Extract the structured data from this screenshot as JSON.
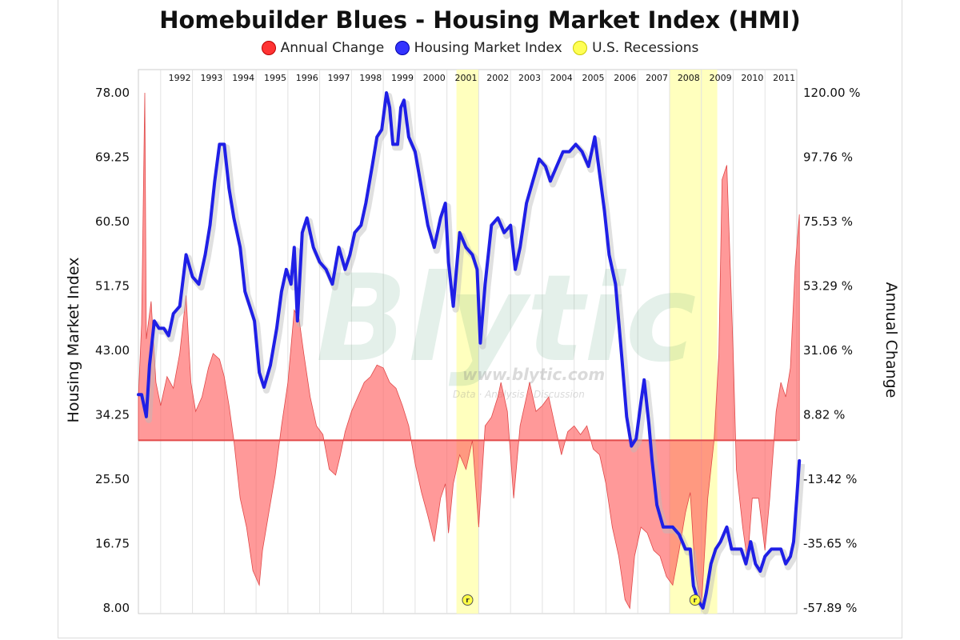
{
  "chart_data": {
    "type": "line",
    "title": "Homebuilder Blues - Housing Market Index (HMI)",
    "legend": [
      {
        "name": "Annual Change",
        "color": "#ff3333"
      },
      {
        "name": "Housing Market Index",
        "color": "#3333ff"
      },
      {
        "name": "U.S. Recessions",
        "color": "#ffff66"
      }
    ],
    "legend_position": "top",
    "ylabel_left": "Housing Market Index",
    "ylabel_right": "Annual Change",
    "y_left_ticks": [
      "78.00",
      "69.25",
      "60.50",
      "51.75",
      "43.00",
      "34.25",
      "25.50",
      "16.75",
      "8.00"
    ],
    "y_right_ticks": [
      "120.00 %",
      "97.76 %",
      "75.53 %",
      "53.29 %",
      "31.06 %",
      "8.82 %",
      "-13.42 %",
      "-35.65 %",
      "-57.89 %"
    ],
    "y_left_range": [
      8,
      78
    ],
    "y_right_range": [
      -57.89,
      120
    ],
    "x_range": [
      1991.2,
      2011.9
    ],
    "years": [
      "1992",
      "1993",
      "1994",
      "1995",
      "1996",
      "1997",
      "1998",
      "1999",
      "2000",
      "2001",
      "2002",
      "2003",
      "2004",
      "2005",
      "2006",
      "2007",
      "2008",
      "2009",
      "2010",
      "2011"
    ],
    "grid": "vertical",
    "recessions": [
      [
        2001.2,
        2001.9
      ],
      [
        2007.9,
        2009.4
      ]
    ],
    "recession_marker": "r",
    "hmi": [
      [
        1991.2,
        37
      ],
      [
        1991.3,
        37
      ],
      [
        1991.45,
        34
      ],
      [
        1991.55,
        41
      ],
      [
        1991.7,
        47
      ],
      [
        1991.85,
        46
      ],
      [
        1992.0,
        46
      ],
      [
        1992.15,
        45
      ],
      [
        1992.3,
        48
      ],
      [
        1992.5,
        49
      ],
      [
        1992.7,
        56
      ],
      [
        1992.9,
        53
      ],
      [
        1993.1,
        52
      ],
      [
        1993.3,
        56
      ],
      [
        1993.45,
        60
      ],
      [
        1993.6,
        66
      ],
      [
        1993.75,
        71
      ],
      [
        1993.9,
        71
      ],
      [
        1994.05,
        65
      ],
      [
        1994.2,
        61
      ],
      [
        1994.4,
        57
      ],
      [
        1994.55,
        51
      ],
      [
        1994.7,
        49
      ],
      [
        1994.85,
        47
      ],
      [
        1995.0,
        40
      ],
      [
        1995.15,
        38
      ],
      [
        1995.35,
        41
      ],
      [
        1995.55,
        46
      ],
      [
        1995.7,
        51
      ],
      [
        1995.85,
        54
      ],
      [
        1996.0,
        52
      ],
      [
        1996.1,
        57
      ],
      [
        1996.2,
        47
      ],
      [
        1996.35,
        59
      ],
      [
        1996.5,
        61
      ],
      [
        1996.7,
        57
      ],
      [
        1996.9,
        55
      ],
      [
        1997.1,
        54
      ],
      [
        1997.3,
        52
      ],
      [
        1997.5,
        57
      ],
      [
        1997.7,
        54
      ],
      [
        1997.85,
        56
      ],
      [
        1998.0,
        59
      ],
      [
        1998.2,
        60
      ],
      [
        1998.35,
        63
      ],
      [
        1998.55,
        68
      ],
      [
        1998.7,
        72
      ],
      [
        1998.85,
        73
      ],
      [
        1999.0,
        78
      ],
      [
        1999.1,
        76
      ],
      [
        1999.2,
        71
      ],
      [
        1999.35,
        71
      ],
      [
        1999.45,
        76
      ],
      [
        1999.55,
        77
      ],
      [
        1999.7,
        72
      ],
      [
        1999.9,
        70
      ],
      [
        2000.1,
        65
      ],
      [
        2000.3,
        60
      ],
      [
        2000.5,
        57
      ],
      [
        2000.7,
        61
      ],
      [
        2000.85,
        63
      ],
      [
        2000.95,
        55
      ],
      [
        2001.1,
        49
      ],
      [
        2001.3,
        59
      ],
      [
        2001.5,
        57
      ],
      [
        2001.7,
        56
      ],
      [
        2001.85,
        54
      ],
      [
        2001.95,
        44
      ],
      [
        2002.1,
        52
      ],
      [
        2002.3,
        60
      ],
      [
        2002.5,
        61
      ],
      [
        2002.7,
        59
      ],
      [
        2002.9,
        60
      ],
      [
        2003.05,
        54
      ],
      [
        2003.2,
        57
      ],
      [
        2003.4,
        63
      ],
      [
        2003.6,
        66
      ],
      [
        2003.8,
        69
      ],
      [
        2004.0,
        68
      ],
      [
        2004.15,
        66
      ],
      [
        2004.35,
        68
      ],
      [
        2004.55,
        70
      ],
      [
        2004.75,
        70
      ],
      [
        2004.95,
        71
      ],
      [
        2005.15,
        70
      ],
      [
        2005.35,
        68
      ],
      [
        2005.55,
        72
      ],
      [
        2005.7,
        67
      ],
      [
        2005.85,
        62
      ],
      [
        2006.0,
        56
      ],
      [
        2006.2,
        52
      ],
      [
        2006.4,
        42
      ],
      [
        2006.55,
        34
      ],
      [
        2006.7,
        30
      ],
      [
        2006.85,
        31
      ],
      [
        2007.0,
        36
      ],
      [
        2007.1,
        39
      ],
      [
        2007.25,
        33
      ],
      [
        2007.35,
        28
      ],
      [
        2007.5,
        22
      ],
      [
        2007.7,
        19
      ],
      [
        2007.85,
        19
      ],
      [
        2008.0,
        19
      ],
      [
        2008.2,
        18
      ],
      [
        2008.4,
        16
      ],
      [
        2008.55,
        16
      ],
      [
        2008.65,
        11
      ],
      [
        2008.8,
        9
      ],
      [
        2008.95,
        8
      ],
      [
        2009.05,
        10
      ],
      [
        2009.2,
        14
      ],
      [
        2009.35,
        16
      ],
      [
        2009.5,
        17
      ],
      [
        2009.7,
        19
      ],
      [
        2009.85,
        16
      ],
      [
        2010.0,
        16
      ],
      [
        2010.15,
        16
      ],
      [
        2010.3,
        14
      ],
      [
        2010.45,
        17
      ],
      [
        2010.6,
        14
      ],
      [
        2010.75,
        13
      ],
      [
        2010.9,
        15
      ],
      [
        2011.1,
        16
      ],
      [
        2011.25,
        16
      ],
      [
        2011.4,
        16
      ],
      [
        2011.55,
        14
      ],
      [
        2011.7,
        15
      ],
      [
        2011.8,
        17
      ],
      [
        2011.9,
        23
      ],
      [
        2011.98,
        28
      ]
    ],
    "annual_change": [
      [
        1991.2,
        15
      ],
      [
        1991.3,
        40
      ],
      [
        1991.4,
        120
      ],
      [
        1991.45,
        35
      ],
      [
        1991.6,
        48
      ],
      [
        1991.75,
        20
      ],
      [
        1991.9,
        12
      ],
      [
        1992.1,
        22
      ],
      [
        1992.3,
        18
      ],
      [
        1992.5,
        30
      ],
      [
        1992.7,
        50
      ],
      [
        1992.85,
        20
      ],
      [
        1993.0,
        10
      ],
      [
        1993.2,
        15
      ],
      [
        1993.4,
        25
      ],
      [
        1993.55,
        30
      ],
      [
        1993.75,
        28
      ],
      [
        1993.9,
        22
      ],
      [
        1994.05,
        12
      ],
      [
        1994.2,
        0
      ],
      [
        1994.4,
        -20
      ],
      [
        1994.6,
        -30
      ],
      [
        1994.8,
        -45
      ],
      [
        1995.0,
        -50
      ],
      [
        1995.1,
        -38
      ],
      [
        1995.3,
        -25
      ],
      [
        1995.5,
        -12
      ],
      [
        1995.7,
        5
      ],
      [
        1995.9,
        20
      ],
      [
        1996.1,
        45
      ],
      [
        1996.25,
        42
      ],
      [
        1996.4,
        30
      ],
      [
        1996.6,
        15
      ],
      [
        1996.8,
        5
      ],
      [
        1997.0,
        2
      ],
      [
        1997.2,
        -10
      ],
      [
        1997.4,
        -12
      ],
      [
        1997.55,
        -5
      ],
      [
        1997.7,
        3
      ],
      [
        1997.9,
        10
      ],
      [
        1998.1,
        15
      ],
      [
        1998.3,
        20
      ],
      [
        1998.5,
        22
      ],
      [
        1998.7,
        26
      ],
      [
        1998.9,
        25
      ],
      [
        1999.1,
        20
      ],
      [
        1999.3,
        18
      ],
      [
        1999.5,
        12
      ],
      [
        1999.7,
        5
      ],
      [
        1999.9,
        -8
      ],
      [
        2000.1,
        -18
      ],
      [
        2000.3,
        -26
      ],
      [
        2000.5,
        -35
      ],
      [
        2000.7,
        -20
      ],
      [
        2000.85,
        -15
      ],
      [
        2000.95,
        -32
      ],
      [
        2001.1,
        -15
      ],
      [
        2001.3,
        -5
      ],
      [
        2001.5,
        -10
      ],
      [
        2001.7,
        0
      ],
      [
        2001.9,
        -30
      ],
      [
        2002.1,
        5
      ],
      [
        2002.3,
        8
      ],
      [
        2002.5,
        15
      ],
      [
        2002.6,
        20
      ],
      [
        2002.8,
        10
      ],
      [
        2003.0,
        -20
      ],
      [
        2003.2,
        5
      ],
      [
        2003.4,
        15
      ],
      [
        2003.5,
        20
      ],
      [
        2003.7,
        10
      ],
      [
        2003.9,
        12
      ],
      [
        2004.1,
        15
      ],
      [
        2004.3,
        5
      ],
      [
        2004.5,
        -5
      ],
      [
        2004.7,
        3
      ],
      [
        2004.9,
        5
      ],
      [
        2005.1,
        2
      ],
      [
        2005.3,
        5
      ],
      [
        2005.5,
        -3
      ],
      [
        2005.7,
        -5
      ],
      [
        2005.9,
        -15
      ],
      [
        2006.1,
        -30
      ],
      [
        2006.3,
        -40
      ],
      [
        2006.5,
        -55
      ],
      [
        2006.65,
        -58
      ],
      [
        2006.8,
        -40
      ],
      [
        2007.0,
        -30
      ],
      [
        2007.2,
        -32
      ],
      [
        2007.4,
        -38
      ],
      [
        2007.6,
        -40
      ],
      [
        2007.8,
        -47
      ],
      [
        2008.0,
        -50
      ],
      [
        2008.2,
        -38
      ],
      [
        2008.4,
        -25
      ],
      [
        2008.55,
        -18
      ],
      [
        2008.7,
        -45
      ],
      [
        2008.9,
        -58
      ],
      [
        2009.1,
        -20
      ],
      [
        2009.3,
        0
      ],
      [
        2009.45,
        30
      ],
      [
        2009.55,
        90
      ],
      [
        2009.7,
        95
      ],
      [
        2009.9,
        30
      ],
      [
        2010.0,
        -10
      ],
      [
        2010.2,
        -30
      ],
      [
        2010.35,
        -42
      ],
      [
        2010.5,
        -20
      ],
      [
        2010.7,
        -20
      ],
      [
        2010.9,
        -38
      ],
      [
        2011.05,
        -20
      ],
      [
        2011.25,
        10
      ],
      [
        2011.4,
        20
      ],
      [
        2011.55,
        15
      ],
      [
        2011.7,
        25
      ],
      [
        2011.85,
        60
      ],
      [
        2011.98,
        78
      ]
    ]
  }
}
